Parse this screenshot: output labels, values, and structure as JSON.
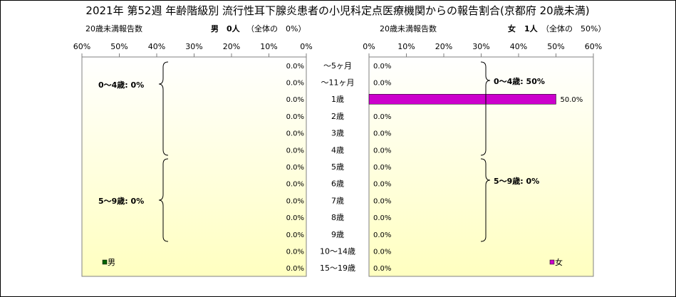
{
  "title": "2021年 第52週 年齢階級別 流行性耳下腺炎患者の小児科定点医療機関からの報告割合(京都府 20歳未満)",
  "left_panel": {
    "subtitle_prefix": "20歳未満報告数",
    "sex": "男",
    "count": "0人",
    "total_note": "（全体の　0%）",
    "legend": "男",
    "brace_labels": [
      "0～4歳: 0%",
      "5～9歳: 0%"
    ]
  },
  "right_panel": {
    "subtitle_prefix": "20歳未満報告数",
    "sex": "女",
    "count": "1人",
    "total_note": "（全体の　50%）",
    "legend": "女",
    "brace_labels": [
      "0～4歳: 50%",
      "5～9歳: 0%"
    ]
  },
  "colors": {
    "male": "#006400",
    "female": "#cc00cc",
    "panel_bg_start": "#ffffff",
    "panel_bg_end": "#ffffc0"
  },
  "chart_data": {
    "type": "bar",
    "orientation": "horizontal-butterfly",
    "categories": [
      "～5ヶ月",
      "～11ヶ月",
      "1歳",
      "2歳",
      "3歳",
      "4歳",
      "5歳",
      "6歳",
      "7歳",
      "8歳",
      "9歳",
      "10～14歳",
      "15～19歳"
    ],
    "xlim": [
      0,
      60
    ],
    "ticks": [
      "0%",
      "10%",
      "20%",
      "30%",
      "40%",
      "50%",
      "60%"
    ],
    "series": [
      {
        "name": "男",
        "values": [
          0,
          0,
          0,
          0,
          0,
          0,
          0,
          0,
          0,
          0,
          0,
          0,
          0
        ],
        "labels": [
          "0.0%",
          "0.0%",
          "0.0%",
          "0.0%",
          "0.0%",
          "0.0%",
          "0.0%",
          "0.0%",
          "0.0%",
          "0.0%",
          "0.0%",
          "0.0%",
          "0.0%"
        ]
      },
      {
        "name": "女",
        "values": [
          0,
          0,
          50,
          0,
          0,
          0,
          0,
          0,
          0,
          0,
          0,
          0,
          0
        ],
        "labels": [
          "0.0%",
          "0.0%",
          "50.0%",
          "0.0%",
          "0.0%",
          "0.0%",
          "0.0%",
          "0.0%",
          "0.0%",
          "0.0%",
          "0.0%",
          "0.0%",
          "0.0%"
        ]
      }
    ]
  }
}
